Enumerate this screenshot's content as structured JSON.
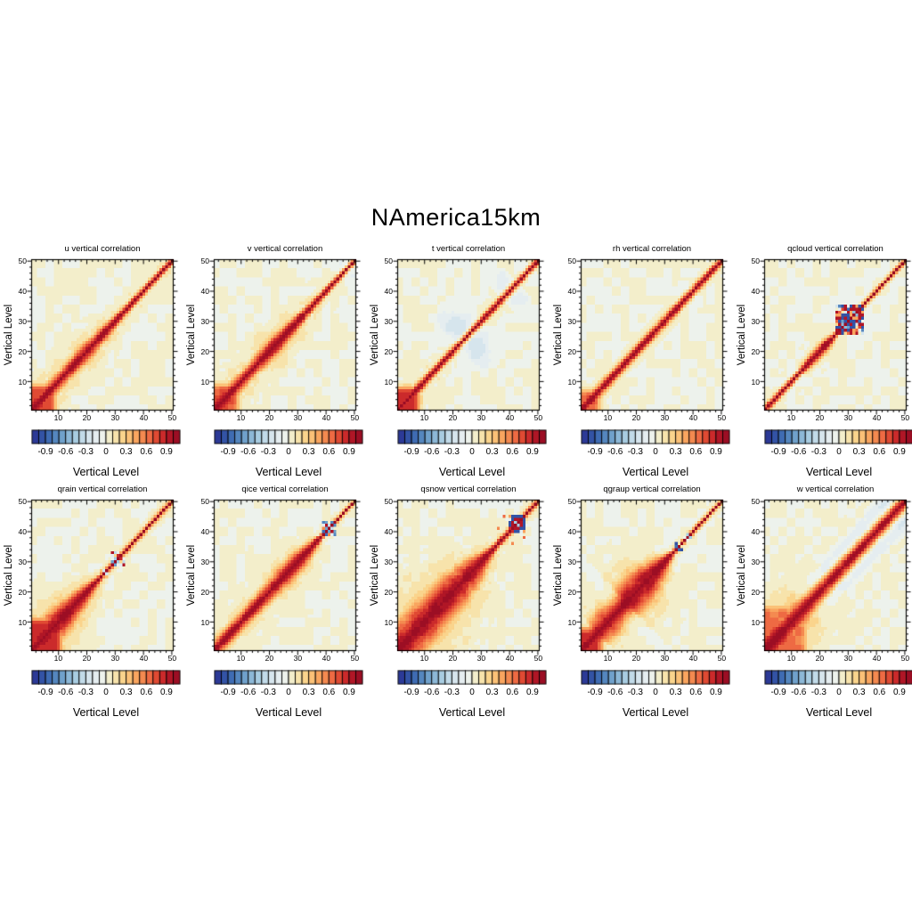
{
  "figure": {
    "title": "NAmerica15km",
    "background": "#ffffff",
    "panel_background": "#f3eecb"
  },
  "palette": [
    "#2c3a97",
    "#3353a5",
    "#3f6cb3",
    "#5587bf",
    "#70a1cb",
    "#8db8d7",
    "#a8cce1",
    "#c2dbe9",
    "#d6e5ed",
    "#e5edf0",
    "#edf2ec",
    "#f3eecb",
    "#f7e3ab",
    "#fad48c",
    "#fbc177",
    "#f9a55f",
    "#f48a50",
    "#ee6a43",
    "#e04a33",
    "#cb2a2b",
    "#b01626",
    "#9c0e24"
  ],
  "chart_data": [
    {
      "type": "heatmap",
      "id": "u",
      "title": "u vertical correlation",
      "xlabel": "Vertical Level",
      "ylabel": "Vertical Level",
      "x_range": [
        1,
        50
      ],
      "y_range": [
        1,
        50
      ],
      "xticks": [
        10,
        20,
        30,
        40,
        50
      ],
      "yticks": [
        10,
        20,
        30,
        40,
        50
      ],
      "minor_tick_step": 2,
      "colorbar": {
        "min": -1.0,
        "max": 1.0,
        "step": 0.1,
        "n_colors": 22,
        "labels": [
          "-0.9",
          "-0.6",
          "-0.3",
          "0",
          "0.3",
          "0.6",
          "0.9"
        ],
        "label_edges": [
          2,
          5,
          8,
          11,
          14,
          17,
          20
        ]
      },
      "field": {
        "seed": 1,
        "mottle": 0.11,
        "sigma": [
          [
            1,
            3.4
          ],
          [
            7,
            2.5
          ],
          [
            13,
            2.2
          ],
          [
            19,
            2.7
          ],
          [
            26,
            2.1
          ],
          [
            33,
            1.4
          ],
          [
            42,
            1.05
          ],
          [
            50,
            0.95
          ]
        ],
        "halo": {
          "mult": 2.2,
          "amp": 0.22
        },
        "block": {
          "size": 7,
          "v": 0.72
        }
      }
    },
    {
      "type": "heatmap",
      "id": "v",
      "title": "v vertical correlation",
      "xlabel": "Vertical Level",
      "ylabel": "Vertical Level",
      "x_range": [
        1,
        50
      ],
      "y_range": [
        1,
        50
      ],
      "xticks": [
        10,
        20,
        30,
        40,
        50
      ],
      "yticks": [
        10,
        20,
        30,
        40,
        50
      ],
      "minor_tick_step": 2,
      "colorbar": {
        "min": -1.0,
        "max": 1.0,
        "step": 0.1,
        "n_colors": 22,
        "labels": [
          "-0.9",
          "-0.6",
          "-0.3",
          "0",
          "0.3",
          "0.6",
          "0.9"
        ],
        "label_edges": [
          2,
          5,
          8,
          11,
          14,
          17,
          20
        ]
      },
      "field": {
        "seed": 2,
        "mottle": 0.11,
        "sigma": [
          [
            1,
            3.4
          ],
          [
            7,
            2.5
          ],
          [
            14,
            2.3
          ],
          [
            22,
            2.8
          ],
          [
            29,
            2.1
          ],
          [
            35,
            1.35
          ],
          [
            43,
            1.05
          ],
          [
            50,
            0.95
          ]
        ],
        "halo": {
          "mult": 2.2,
          "amp": 0.22
        },
        "block": {
          "size": 7,
          "v": 0.72
        },
        "blobs": [
          {
            "cx": 46,
            "cy": 48.5,
            "amp": -0.14,
            "r": 2.0
          }
        ]
      }
    },
    {
      "type": "heatmap",
      "id": "t",
      "title": "t vertical correlation",
      "xlabel": "Vertical Level",
      "ylabel": "Vertical Level",
      "x_range": [
        1,
        50
      ],
      "y_range": [
        1,
        50
      ],
      "xticks": [
        10,
        20,
        30,
        40,
        50
      ],
      "yticks": [
        10,
        20,
        30,
        40,
        50
      ],
      "minor_tick_step": 2,
      "colorbar": {
        "min": -1.0,
        "max": 1.0,
        "step": 0.1,
        "n_colors": 22,
        "labels": [
          "-0.9",
          "-0.6",
          "-0.3",
          "0",
          "0.3",
          "0.6",
          "0.9"
        ],
        "label_edges": [
          2,
          5,
          8,
          11,
          14,
          17,
          20
        ]
      },
      "field": {
        "seed": 3,
        "mottle": 0.1,
        "sigma": [
          [
            1,
            2.6
          ],
          [
            6,
            1.7
          ],
          [
            12,
            1.35
          ],
          [
            30,
            1.25
          ],
          [
            50,
            1.15
          ]
        ],
        "halo": {
          "mult": 2.0,
          "amp": 0.16
        },
        "block": {
          "size": 6,
          "v": 0.88
        },
        "blobs": [
          {
            "cx": 21.5,
            "cy": 28.5,
            "amp": -0.24,
            "r": 4.2
          },
          {
            "cx": 37.5,
            "cy": 42.5,
            "amp": -0.16,
            "r": 2.4
          },
          {
            "cx": 45,
            "cy": 48,
            "amp": -0.12,
            "r": 1.6
          }
        ]
      }
    },
    {
      "type": "heatmap",
      "id": "rh",
      "title": "rh vertical correlation",
      "xlabel": "Vertical Level",
      "ylabel": "Vertical Level",
      "x_range": [
        1,
        50
      ],
      "y_range": [
        1,
        50
      ],
      "xticks": [
        10,
        20,
        30,
        40,
        50
      ],
      "yticks": [
        10,
        20,
        30,
        40,
        50
      ],
      "minor_tick_step": 2,
      "colorbar": {
        "min": -1.0,
        "max": 1.0,
        "step": 0.1,
        "n_colors": 22,
        "labels": [
          "-0.9",
          "-0.6",
          "-0.3",
          "0",
          "0.3",
          "0.6",
          "0.9"
        ],
        "label_edges": [
          2,
          5,
          8,
          11,
          14,
          17,
          20
        ]
      },
      "field": {
        "seed": 4,
        "mottle": 0.1,
        "sigma": [
          [
            1,
            2.3
          ],
          [
            8,
            1.6
          ],
          [
            30,
            1.5
          ],
          [
            45,
            1.3
          ],
          [
            50,
            1.2
          ]
        ],
        "halo": {
          "mult": 1.8,
          "amp": 0.15
        },
        "block": {
          "size": 5,
          "v": 0.72
        },
        "blobs": [
          {
            "cx": 38,
            "cy": 41.5,
            "amp": -0.1,
            "r": 1.8
          }
        ]
      }
    },
    {
      "type": "heatmap",
      "id": "qcloud",
      "title": "qcloud vertical correlation",
      "xlabel": "Vertical Level",
      "ylabel": "Vertical Level",
      "x_range": [
        1,
        50
      ],
      "y_range": [
        1,
        50
      ],
      "xticks": [
        10,
        20,
        30,
        40,
        50
      ],
      "yticks": [
        10,
        20,
        30,
        40,
        50
      ],
      "minor_tick_step": 2,
      "colorbar": {
        "min": -1.0,
        "max": 1.0,
        "step": 0.1,
        "n_colors": 22,
        "labels": [
          "-0.9",
          "-0.6",
          "-0.3",
          "0",
          "0.3",
          "0.6",
          "0.9"
        ],
        "label_edges": [
          2,
          5,
          8,
          11,
          14,
          17,
          20
        ]
      },
      "field": {
        "seed": 5,
        "mottle": 0.13,
        "sigma": [
          [
            1,
            1.25
          ],
          [
            13,
            1.0
          ],
          [
            17,
            1.7
          ],
          [
            21,
            2.0
          ],
          [
            24,
            1.4
          ],
          [
            26,
            0.85
          ],
          [
            50,
            0.72
          ]
        ],
        "halo": {
          "mult": 2.0,
          "amp": 0.13
        },
        "noise": [
          {
            "lo": 26,
            "hi": 35,
            "seed": 11,
            "spread": 2.4
          }
        ]
      }
    },
    {
      "type": "heatmap",
      "id": "qrain",
      "title": "qrain vertical correlation",
      "xlabel": "Vertical Level",
      "ylabel": "Vertical Level",
      "x_range": [
        1,
        50
      ],
      "y_range": [
        1,
        50
      ],
      "xticks": [
        10,
        20,
        30,
        40,
        50
      ],
      "yticks": [
        10,
        20,
        30,
        40,
        50
      ],
      "minor_tick_step": 2,
      "colorbar": {
        "min": -1.0,
        "max": 1.0,
        "step": 0.1,
        "n_colors": 22,
        "labels": [
          "-0.9",
          "-0.6",
          "-0.3",
          "0",
          "0.3",
          "0.6",
          "0.9"
        ],
        "label_edges": [
          2,
          5,
          8,
          11,
          14,
          17,
          20
        ]
      },
      "field": {
        "seed": 6,
        "mottle": 0.11,
        "sigma": [
          [
            1,
            5.6
          ],
          [
            8,
            5.0
          ],
          [
            13,
            4.3
          ],
          [
            17,
            3.4
          ],
          [
            21,
            2.2
          ],
          [
            24,
            1.1
          ],
          [
            30,
            0.85
          ],
          [
            50,
            0.75
          ]
        ],
        "halo": {
          "mult": 1.9,
          "amp": 0.3
        },
        "block": {
          "size": 9,
          "v": 0.85
        },
        "noise": [
          {
            "lo": 25,
            "hi": 27,
            "seed": 12,
            "spread": 1.8
          },
          {
            "lo": 29,
            "hi": 33,
            "seed": 13,
            "spread": 1.7,
            "bias": 0.2
          }
        ]
      }
    },
    {
      "type": "heatmap",
      "id": "qice",
      "title": "qice vertical correlation",
      "xlabel": "Vertical Level",
      "ylabel": "Vertical Level",
      "x_range": [
        1,
        50
      ],
      "y_range": [
        1,
        50
      ],
      "xticks": [
        10,
        20,
        30,
        40,
        50
      ],
      "yticks": [
        10,
        20,
        30,
        40,
        50
      ],
      "minor_tick_step": 2,
      "colorbar": {
        "min": -1.0,
        "max": 1.0,
        "step": 0.1,
        "n_colors": 22,
        "labels": [
          "-0.9",
          "-0.6",
          "-0.3",
          "0",
          "0.3",
          "0.6",
          "0.9"
        ],
        "label_edges": [
          2,
          5,
          8,
          11,
          14,
          17,
          20
        ]
      },
      "field": {
        "seed": 7,
        "mottle": 0.1,
        "sigma": [
          [
            1,
            2.5
          ],
          [
            10,
            2.2
          ],
          [
            17,
            2.6
          ],
          [
            25,
            3.3
          ],
          [
            31,
            3.0
          ],
          [
            35,
            1.8
          ],
          [
            38,
            1.0
          ],
          [
            43,
            0.75
          ],
          [
            50,
            0.7
          ]
        ],
        "halo": {
          "mult": 2.0,
          "amp": 0.2
        },
        "noise": [
          {
            "lo": 39,
            "hi": 43,
            "seed": 14,
            "spread": 1.5,
            "bias": 0.35
          }
        ]
      }
    },
    {
      "type": "heatmap",
      "id": "qsnow",
      "title": "qsnow vertical correlation",
      "xlabel": "Vertical Level",
      "ylabel": "Vertical Level",
      "x_range": [
        1,
        50
      ],
      "y_range": [
        1,
        50
      ],
      "xticks": [
        10,
        20,
        30,
        40,
        50
      ],
      "yticks": [
        10,
        20,
        30,
        40,
        50
      ],
      "minor_tick_step": 2,
      "colorbar": {
        "min": -1.0,
        "max": 1.0,
        "step": 0.1,
        "n_colors": 22,
        "labels": [
          "-0.9",
          "-0.6",
          "-0.3",
          "0",
          "0.3",
          "0.6",
          "0.9"
        ],
        "label_edges": [
          2,
          5,
          8,
          11,
          14,
          17,
          20
        ]
      },
      "field": {
        "seed": 8,
        "mottle": 0.11,
        "sigma": [
          [
            1,
            6.6
          ],
          [
            11,
            6.8
          ],
          [
            19,
            6.2
          ],
          [
            27,
            4.4
          ],
          [
            31,
            2.4
          ],
          [
            35,
            1.2
          ],
          [
            50,
            0.85
          ]
        ],
        "halo": {
          "mult": 1.8,
          "amp": 0.3
        },
        "noise": [
          {
            "lo": 40,
            "hi": 45,
            "seed": 15,
            "spread": 1.9
          }
        ],
        "dots": [
          {
            "x": 38,
            "y": 45,
            "v": 0.6
          },
          {
            "x": 36,
            "y": 41,
            "v": 0.55
          }
        ]
      }
    },
    {
      "type": "heatmap",
      "id": "qgraup",
      "title": "qgraup vertical correlation",
      "xlabel": "Vertical Level",
      "ylabel": "Vertical Level",
      "x_range": [
        1,
        50
      ],
      "y_range": [
        1,
        50
      ],
      "xticks": [
        10,
        20,
        30,
        40,
        50
      ],
      "yticks": [
        10,
        20,
        30,
        40,
        50
      ],
      "minor_tick_step": 2,
      "colorbar": {
        "min": -1.0,
        "max": 1.0,
        "step": 0.1,
        "n_colors": 22,
        "labels": [
          "-0.9",
          "-0.6",
          "-0.3",
          "0",
          "0.3",
          "0.6",
          "0.9"
        ],
        "label_edges": [
          2,
          5,
          8,
          11,
          14,
          17,
          20
        ]
      },
      "field": {
        "seed": 9,
        "mottle": 0.11,
        "sigma": [
          [
            1,
            3.5
          ],
          [
            6,
            3.5
          ],
          [
            7,
            4.9
          ],
          [
            12,
            4.9
          ],
          [
            13,
            4.1
          ],
          [
            16,
            4.1
          ],
          [
            17,
            6.2
          ],
          [
            24,
            6.2
          ],
          [
            26,
            4.3
          ],
          [
            29,
            3.1
          ],
          [
            31,
            1.8
          ],
          [
            33,
            0.9
          ],
          [
            50,
            0.72
          ]
        ],
        "halo": {
          "mult": 1.7,
          "amp": 0.26
        },
        "block": {
          "size": 6,
          "v": 0.8
        },
        "noise": [
          {
            "lo": 34,
            "hi": 36,
            "seed": 16,
            "spread": 1.5
          },
          {
            "lo": 37,
            "hi": 39,
            "seed": 17,
            "spread": 1.5
          }
        ]
      }
    },
    {
      "type": "heatmap",
      "id": "w",
      "title": "w vertical correlation",
      "xlabel": "Vertical Level",
      "ylabel": "Vertical Level",
      "x_range": [
        1,
        50
      ],
      "y_range": [
        1,
        50
      ],
      "xticks": [
        10,
        20,
        30,
        40,
        50
      ],
      "yticks": [
        10,
        20,
        30,
        40,
        50
      ],
      "minor_tick_step": 2,
      "colorbar": {
        "min": -1.0,
        "max": 1.0,
        "step": 0.1,
        "n_colors": 22,
        "labels": [
          "-0.9",
          "-0.6",
          "-0.3",
          "0",
          "0.3",
          "0.6",
          "0.9"
        ],
        "label_edges": [
          2,
          5,
          8,
          11,
          14,
          17,
          20
        ]
      },
      "field": {
        "seed": 10,
        "mottle": 0.1,
        "sigma": [
          [
            1,
            4.9
          ],
          [
            9,
            4.3
          ],
          [
            15,
            3.5
          ],
          [
            23,
            3.0
          ],
          [
            31,
            2.7
          ],
          [
            40,
            2.45
          ],
          [
            50,
            2.2
          ]
        ],
        "halo": {
          "mult": 2.2,
          "amp": 0.34
        },
        "block": {
          "size": 13,
          "v": 0.62
        },
        "flank": {
          "off": 6,
          "width": 2.4,
          "amp": -0.33,
          "start": 13,
          "ramp": 10
        }
      }
    }
  ]
}
